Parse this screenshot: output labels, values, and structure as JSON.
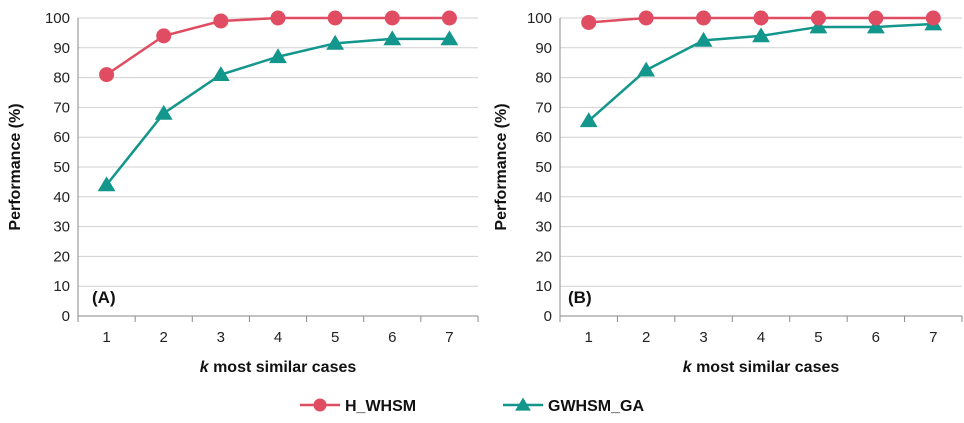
{
  "legend": [
    {
      "label": "H_WHSM",
      "color": "#e04c62",
      "marker": "circle"
    },
    {
      "label": "GWHSM_GA",
      "color": "#13968b",
      "marker": "triangle"
    }
  ],
  "chart_data": [
    {
      "type": "line",
      "panel_label": "(A)",
      "x": [
        1,
        2,
        3,
        4,
        5,
        6,
        7
      ],
      "xlabel_prefix": "k",
      "xlabel_rest": " most similar cases",
      "ylabel": "Performance (%)",
      "ylim": [
        0,
        100
      ],
      "yticks": [
        0,
        10,
        20,
        30,
        40,
        50,
        60,
        70,
        80,
        90,
        100
      ],
      "grid": "horizontal",
      "legend_position": "bottom",
      "series": [
        {
          "name": "H_WHSM",
          "color": "#e04c62",
          "marker": "circle",
          "values": [
            81,
            94,
            99,
            100,
            100,
            100,
            100
          ]
        },
        {
          "name": "GWHSM_GA",
          "color": "#13968b",
          "marker": "triangle",
          "values": [
            44,
            68,
            81,
            87,
            91.5,
            93,
            93
          ]
        }
      ]
    },
    {
      "type": "line",
      "panel_label": "(B)",
      "x": [
        1,
        2,
        3,
        4,
        5,
        6,
        7
      ],
      "xlabel_prefix": "k",
      "xlabel_rest": " most similar cases",
      "ylabel": "Performance (%)",
      "ylim": [
        0,
        100
      ],
      "yticks": [
        0,
        10,
        20,
        30,
        40,
        50,
        60,
        70,
        80,
        90,
        100
      ],
      "grid": "horizontal",
      "legend_position": "bottom",
      "series": [
        {
          "name": "H_WHSM",
          "color": "#e04c62",
          "marker": "circle",
          "values": [
            98.5,
            100,
            100,
            100,
            100,
            100,
            100
          ]
        },
        {
          "name": "GWHSM_GA",
          "color": "#13968b",
          "marker": "triangle",
          "values": [
            65.5,
            82.5,
            92.5,
            94,
            97,
            97,
            98
          ]
        }
      ]
    }
  ]
}
